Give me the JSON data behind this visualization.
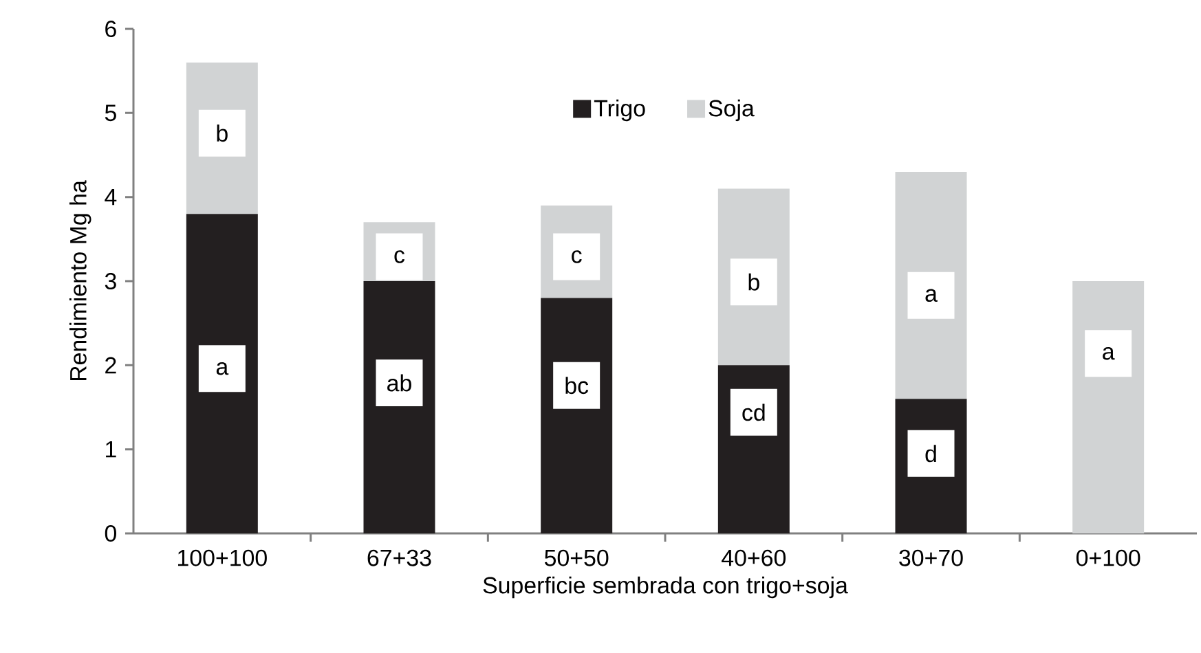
{
  "chart_data": {
    "type": "bar",
    "stacked": true,
    "xlabel": "Superficie sembrada con trigo+soja",
    "ylabel": "Rendimiento Mg ha",
    "categories": [
      "100+100",
      "67+33",
      "50+50",
      "40+60",
      "30+70",
      "0+100"
    ],
    "series": [
      {
        "name": "Trigo",
        "color": "#231f20",
        "values": [
          3.8,
          3.0,
          2.8,
          2.0,
          1.6,
          0
        ]
      },
      {
        "name": "Soja",
        "color": "#d1d3d4",
        "values": [
          1.8,
          0.7,
          1.1,
          2.1,
          2.7,
          3.0
        ]
      }
    ],
    "ylim": [
      0,
      6
    ],
    "yticks": [
      0,
      1,
      2,
      3,
      4,
      5,
      6
    ],
    "legend": "top",
    "grid": false,
    "annotations": [
      {
        "text": "a",
        "x": "100+100",
        "y": 1.96
      },
      {
        "text": "b",
        "x": "100+100",
        "y": 4.76
      },
      {
        "text": "ab",
        "x": "67+33",
        "y": 1.79
      },
      {
        "text": "c",
        "x": "67+33",
        "y": 3.29
      },
      {
        "text": "bc",
        "x": "50+50",
        "y": 1.76
      },
      {
        "text": "c",
        "x": "50+50",
        "y": 3.29
      },
      {
        "text": "cd",
        "x": "40+60",
        "y": 1.44
      },
      {
        "text": "b",
        "x": "40+60",
        "y": 2.99
      },
      {
        "text": "d",
        "x": "30+70",
        "y": 0.95
      },
      {
        "text": "a",
        "x": "30+70",
        "y": 2.83
      },
      {
        "text": "a",
        "x": "0+100",
        "y": 2.14
      }
    ]
  }
}
